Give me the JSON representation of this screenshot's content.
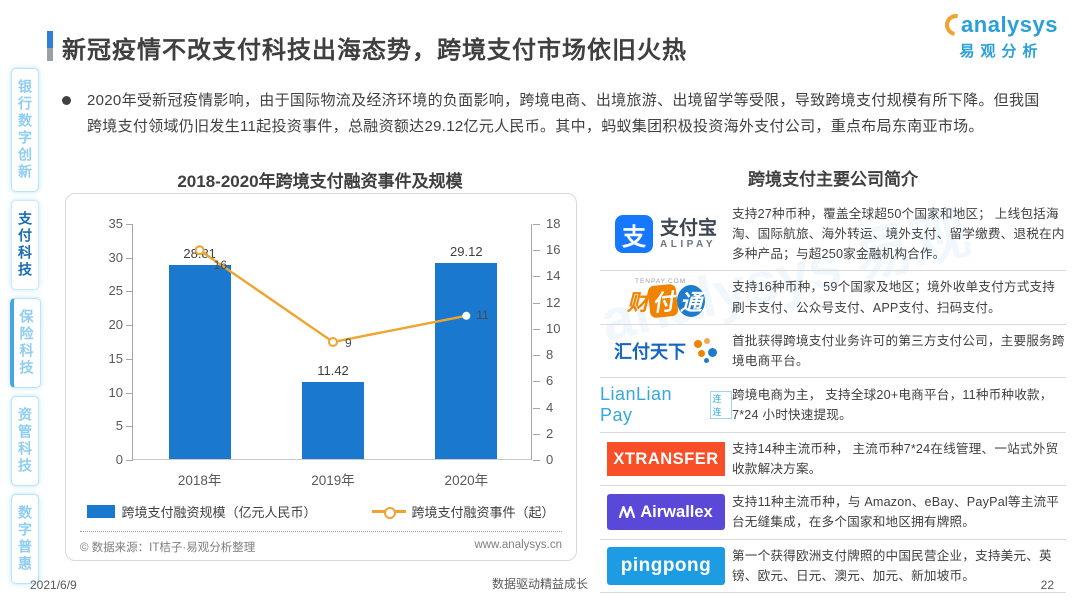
{
  "header": {
    "title": "新冠疫情不改支付科技出海态势，跨境支付市场依旧火热"
  },
  "brand": {
    "name_en": "analysys",
    "name_cn": "易观分析"
  },
  "sidebar": {
    "items": [
      {
        "label": "银行数字创新",
        "active": false
      },
      {
        "label": "支付科技",
        "active": true
      },
      {
        "label": "保险科技",
        "active": false
      },
      {
        "label": "资管科技",
        "active": false
      },
      {
        "label": "数字普惠",
        "active": false
      }
    ]
  },
  "summary": {
    "bullet": "2020年受新冠疫情影响，由于国际物流及经济环境的负面影响，跨境电商、出境旅游、出境留学等受限，导致跨境支付规模有所下降。但我国跨境支付领域仍旧发生11起投资事件，总融资额达29.12亿元人民币。其中，蚂蚁集团积极投资海外支付公司，重点布局东南亚市场。"
  },
  "chart_data": {
    "type": "bar",
    "title": "2018-2020年跨境支付融资事件及规模",
    "categories": [
      "2018年",
      "2019年",
      "2020年"
    ],
    "series": [
      {
        "name": "跨境支付融资规模（亿元人民币）",
        "type": "bar",
        "axis": "left",
        "values": [
          28.81,
          11.42,
          29.12
        ],
        "color": "#1b78cf"
      },
      {
        "name": "跨境支付融资事件（起）",
        "type": "line",
        "axis": "right",
        "values": [
          16,
          9,
          11
        ],
        "color": "#eea430"
      }
    ],
    "y_left": {
      "min": 0,
      "max": 35,
      "ticks": [
        35,
        30,
        25,
        20,
        15,
        10,
        5,
        0
      ]
    },
    "y_right": {
      "min": 0,
      "max": 18,
      "ticks": [
        18,
        16,
        14,
        12,
        10,
        8,
        6,
        4,
        2,
        0
      ]
    },
    "grid": false,
    "legend_position": "bottom",
    "source_left": "© 数据来源：IT桔子·易观分析整理",
    "source_right": "www.analysys.cn"
  },
  "companies": {
    "title": "跨境支付主要公司简介",
    "rows": [
      {
        "name": "支付宝",
        "logo_sub": "ALIPAY",
        "logo_glyph": "支",
        "desc": "支持27种币种，覆盖全球超50个国家和地区； 上线包括海淘、国际航旅、海外转运、境外支付、留学缴费、退税在内多种产品；与超250家金融机构合作。"
      },
      {
        "name": "财付通",
        "logo_sub": "TENPAY.COM",
        "logo_chars": [
          "财",
          "付",
          "通"
        ],
        "desc": "支持16种币种，59个国家及地区；境外收单支付方式支持刷卡支付、公众号支付、APP支付、扫码支付。"
      },
      {
        "name": "汇付天下",
        "desc": "首批获得跨境支付业务许可的第三方支付公司，主要服务跨境电商平台。"
      },
      {
        "name": "LianLian Pay",
        "logo_sub": "连连",
        "desc": "跨境电商为主， 支持全球20+电商平台，11种币种收款，7*24 小时快速提现。"
      },
      {
        "name": "XTRANSFER",
        "desc": "支持14种主流币种， 主流币种7*24在线管理、一站式外贸收款解决方案。"
      },
      {
        "name": "Airwallex",
        "desc": "支持11种主流币种，与 Amazon、eBay、PayPal等主流平台无缝集成，在多个国家和地区拥有牌照。"
      },
      {
        "name": "pingpong",
        "desc": "第一个获得欧洲支付牌照的中国民营企业，支持美元、英镑、欧元、日元、澳元、加元、新加坡币。"
      }
    ]
  },
  "footer": {
    "date": "2021/6/9",
    "slogan": "数据驱动精益成长",
    "page": "22"
  }
}
